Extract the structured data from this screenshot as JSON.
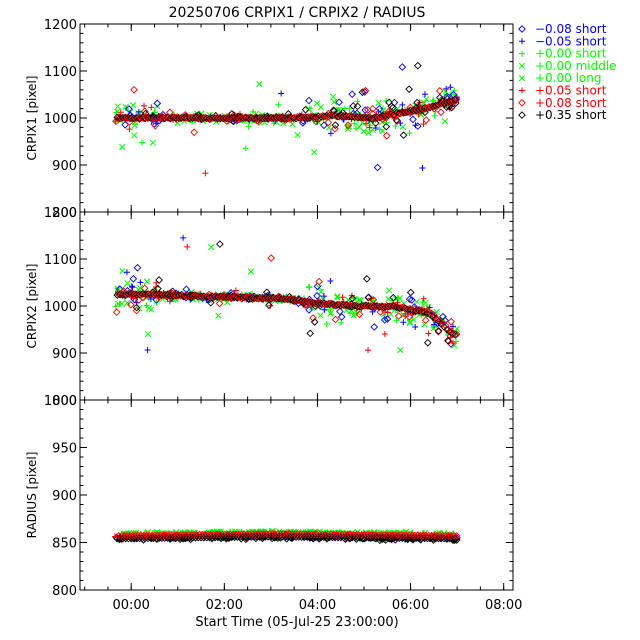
{
  "chart_data": {
    "type": "scatter",
    "title": "20250706  CRPIX1  /  CRPIX2  /  RADIUS",
    "xlabel": "Start Time (05-Jul-25 23:00:00)",
    "x_unit": "hours since 05-Jul-25 23:00:00",
    "xlim": [
      -0.1,
      9.2
    ],
    "x_ticks": [
      1,
      3,
      5,
      7,
      9
    ],
    "x_tick_labels": [
      "00:00",
      "02:00",
      "04:00",
      "06:00",
      "08:00"
    ],
    "panels": [
      {
        "ylabel": "CRPIX1 [pixel]",
        "ylim": [
          800,
          1200
        ],
        "y_ticks": [
          800,
          900,
          1000,
          1100,
          1200
        ],
        "y_tick_labels": [
          "800",
          "900",
          "1000",
          "1100",
          "1200"
        ],
        "trend": [
          [
            1.7,
            1000
          ],
          [
            2.7,
            1000
          ],
          [
            3.7,
            1000
          ],
          [
            4.5,
            1000
          ],
          [
            5.3,
            1005
          ],
          [
            6.2,
            1000
          ],
          [
            7.3,
            1020
          ],
          [
            8.0,
            1040
          ]
        ]
      },
      {
        "ylabel": "CRPIX2 [pixel]",
        "ylim": [
          800,
          1200
        ],
        "y_ticks": [
          800,
          900,
          1000,
          1100,
          1200
        ],
        "y_tick_labels": [
          "800",
          "900",
          "1000",
          "1100",
          "1200"
        ],
        "trend": [
          [
            1.5,
            1025
          ],
          [
            2.5,
            1020
          ],
          [
            3.5,
            1018
          ],
          [
            4.3,
            1015
          ],
          [
            5.0,
            1005
          ],
          [
            5.8,
            1000
          ],
          [
            6.6,
            1000
          ],
          [
            7.4,
            985
          ],
          [
            7.9,
            940
          ]
        ]
      },
      {
        "ylabel": "RADIUS [pixel]",
        "ylim": [
          800,
          1000
        ],
        "y_ticks": [
          800,
          850,
          900,
          950,
          1000
        ],
        "y_tick_labels": [
          "800",
          "850",
          "900",
          "950",
          "1000"
        ],
        "trend": [
          [
            0.7,
            856
          ],
          [
            4.0,
            858
          ],
          [
            8.0,
            856
          ]
        ]
      }
    ],
    "series": [
      {
        "name": "−0.08 short",
        "symbol": "diamond",
        "color": "#0000ff"
      },
      {
        "name": "−0.05 short",
        "symbol": "plus",
        "color": "#0000ff"
      },
      {
        "name": "+0.00 short",
        "symbol": "plus",
        "color": "#00ff00"
      },
      {
        "name": "+0.00 middle",
        "symbol": "cross",
        "color": "#00ff00"
      },
      {
        "name": "+0.00 long",
        "symbol": "cross",
        "color": "#00ff00"
      },
      {
        "name": "+0.05 short",
        "symbol": "plus",
        "color": "#ff0000"
      },
      {
        "name": "+0.08 short",
        "symbol": "diamond",
        "color": "#ff0000"
      },
      {
        "name": "+0.35 short",
        "symbol": "diamond",
        "color": "#000000"
      }
    ]
  }
}
